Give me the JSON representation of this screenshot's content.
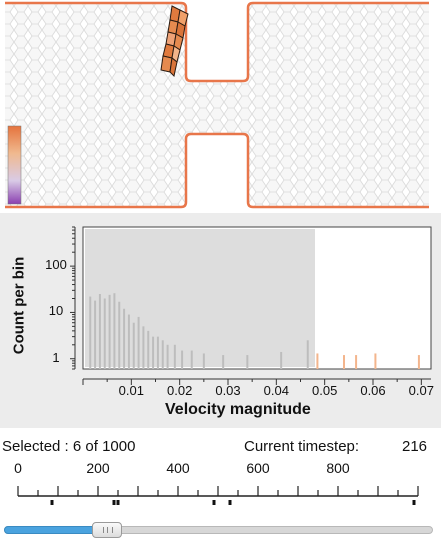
{
  "colors": {
    "wall": "#e8764a",
    "cell_stroke": "#d4d4d4",
    "particle_fill": "#e58a4f",
    "particle_stroke": "#2a1b12",
    "colorbar_top": "#e5733d",
    "colorbar_bottom": "#8a3fb0",
    "histogram_bar": "#bdbdbd",
    "histogram_bar_light": "#f3b58d",
    "slider_fill": "#4aa3df",
    "slider_track": "#d7d7d7"
  },
  "status": {
    "selected_text": "Selected : 6 of 1000",
    "timestep_text": "Current timestep:",
    "timestep_value": "216"
  },
  "chart_data": {
    "type": "bar",
    "xlabel": "Velocity magnitude",
    "ylabel": "Count per bin",
    "xlim": [
      0,
      0.072
    ],
    "ylim": [
      0.6,
      700
    ],
    "log_y": true,
    "x_tick_labels": [
      "0.01",
      "0.02",
      "0.03",
      "0.04",
      "0.05",
      "0.06",
      "0.07"
    ],
    "y_tick_labels": [
      "1",
      "10",
      "100"
    ],
    "highlight_range": [
      0.0,
      0.048
    ],
    "bins": [
      {
        "x": 0.0015,
        "y": 22
      },
      {
        "x": 0.0025,
        "y": 18
      },
      {
        "x": 0.0035,
        "y": 25
      },
      {
        "x": 0.0045,
        "y": 20
      },
      {
        "x": 0.0055,
        "y": 24
      },
      {
        "x": 0.0065,
        "y": 26
      },
      {
        "x": 0.0075,
        "y": 17
      },
      {
        "x": 0.0085,
        "y": 12
      },
      {
        "x": 0.0095,
        "y": 9
      },
      {
        "x": 0.0105,
        "y": 6
      },
      {
        "x": 0.0115,
        "y": 8
      },
      {
        "x": 0.0125,
        "y": 5
      },
      {
        "x": 0.0135,
        "y": 4
      },
      {
        "x": 0.0145,
        "y": 3
      },
      {
        "x": 0.0155,
        "y": 3
      },
      {
        "x": 0.0165,
        "y": 2.5
      },
      {
        "x": 0.0175,
        "y": 2
      },
      {
        "x": 0.019,
        "y": 2
      },
      {
        "x": 0.0205,
        "y": 1.5
      },
      {
        "x": 0.0225,
        "y": 1.5
      },
      {
        "x": 0.025,
        "y": 1.3
      },
      {
        "x": 0.029,
        "y": 1.2
      },
      {
        "x": 0.034,
        "y": 1.2
      },
      {
        "x": 0.041,
        "y": 1.4
      },
      {
        "x": 0.0465,
        "y": 2.5
      },
      {
        "x": 0.0485,
        "y": 1.3
      },
      {
        "x": 0.054,
        "y": 1.2
      },
      {
        "x": 0.0565,
        "y": 1.2
      },
      {
        "x": 0.0605,
        "y": 1.3
      },
      {
        "x": 0.0695,
        "y": 1.2
      }
    ]
  },
  "timestep_scale": {
    "min": 0,
    "max": 1000,
    "labels": [
      "0",
      "200",
      "400",
      "600",
      "800"
    ],
    "label_values": [
      0,
      200,
      400,
      600,
      800
    ],
    "marker_values": [
      85,
      240,
      250,
      490,
      530,
      990
    ]
  },
  "slider": {
    "value": 216,
    "max": 1000
  },
  "colorbar": {
    "stops": [
      "#e5733d",
      "#f0b98f",
      "#d9cbe6",
      "#8a3fb0"
    ]
  }
}
